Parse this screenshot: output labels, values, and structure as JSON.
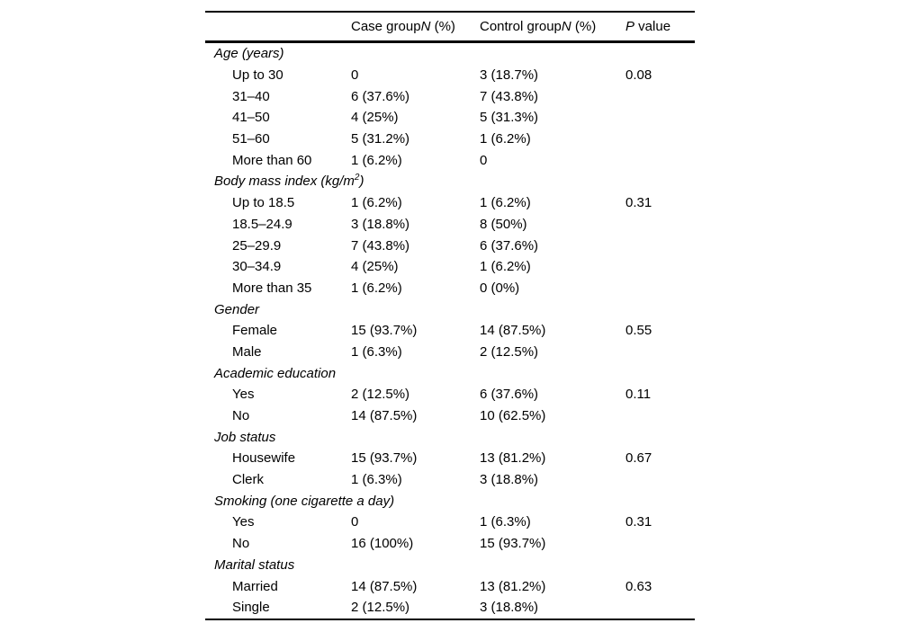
{
  "page": {
    "background": "#ffffff"
  },
  "colors": {
    "text": "#000000",
    "rule": "#000000"
  },
  "table": {
    "header": {
      "col1": "",
      "case": {
        "text": "Case group",
        "n": "N",
        "pct": " (%)"
      },
      "control": {
        "text": "Control group",
        "n": "N",
        "pct": " (%)"
      },
      "p": {
        "p": "P",
        "text": " value"
      }
    },
    "sections": [
      {
        "label": "Age (years)",
        "sup": "",
        "label_end": "",
        "rows": [
          {
            "label": "Up to 30",
            "case": "0",
            "control": "3 (18.7%)",
            "p": "0.08"
          },
          {
            "label": "31–40",
            "case": "6 (37.6%)",
            "control": "7 (43.8%)",
            "p": ""
          },
          {
            "label": "41–50",
            "case": "4 (25%)",
            "control": "5 (31.3%)",
            "p": ""
          },
          {
            "label": "51–60",
            "case": "5 (31.2%)",
            "control": "1 (6.2%)",
            "p": ""
          },
          {
            "label": "More than 60",
            "case": "1 (6.2%)",
            "control": "0",
            "p": ""
          }
        ]
      },
      {
        "label": "Body mass index (kg/m",
        "sup": "2",
        "label_end": ")",
        "rows": [
          {
            "label": "Up to 18.5",
            "case": "1 (6.2%)",
            "control": "1 (6.2%)",
            "p": "0.31"
          },
          {
            "label": "18.5–24.9",
            "case": "3 (18.8%)",
            "control": "8 (50%)",
            "p": ""
          },
          {
            "label": "25–29.9",
            "case": "7 (43.8%)",
            "control": "6 (37.6%)",
            "p": ""
          },
          {
            "label": "30–34.9",
            "case": "4 (25%)",
            "control": "1 (6.2%)",
            "p": ""
          },
          {
            "label": "More than 35",
            "case": "1 (6.2%)",
            "control": "0 (0%)",
            "p": ""
          }
        ]
      },
      {
        "label": "Gender",
        "sup": "",
        "label_end": "",
        "rows": [
          {
            "label": "Female",
            "case": "15 (93.7%)",
            "control": "14 (87.5%)",
            "p": "0.55"
          },
          {
            "label": "Male",
            "case": "1 (6.3%)",
            "control": "2 (12.5%)",
            "p": ""
          }
        ]
      },
      {
        "label": "Academic education",
        "sup": "",
        "label_end": "",
        "rows": [
          {
            "label": "Yes",
            "case": "2 (12.5%)",
            "control": "6 (37.6%)",
            "p": "0.11"
          },
          {
            "label": "No",
            "case": "14 (87.5%)",
            "control": "10 (62.5%)",
            "p": ""
          }
        ]
      },
      {
        "label": "Job status",
        "sup": "",
        "label_end": "",
        "rows": [
          {
            "label": "Housewife",
            "case": "15 (93.7%)",
            "control": "13 (81.2%)",
            "p": "0.67"
          },
          {
            "label": "Clerk",
            "case": "1 (6.3%)",
            "control": "3 (18.8%)",
            "p": ""
          }
        ]
      },
      {
        "label": "Smoking (one cigarette a day)",
        "sup": "",
        "label_end": "",
        "rows": [
          {
            "label": "Yes",
            "case": "0",
            "control": "1 (6.3%)",
            "p": "0.31"
          },
          {
            "label": "No",
            "case": "16 (100%)",
            "control": "15 (93.7%)",
            "p": ""
          }
        ]
      },
      {
        "label": "Marital status",
        "sup": "",
        "label_end": "",
        "rows": [
          {
            "label": "Married",
            "case": "14 (87.5%)",
            "control": "13 (81.2%)",
            "p": "0.63"
          },
          {
            "label": "Single",
            "case": "2 (12.5%)",
            "control": "3 (18.8%)",
            "p": ""
          }
        ]
      }
    ]
  }
}
